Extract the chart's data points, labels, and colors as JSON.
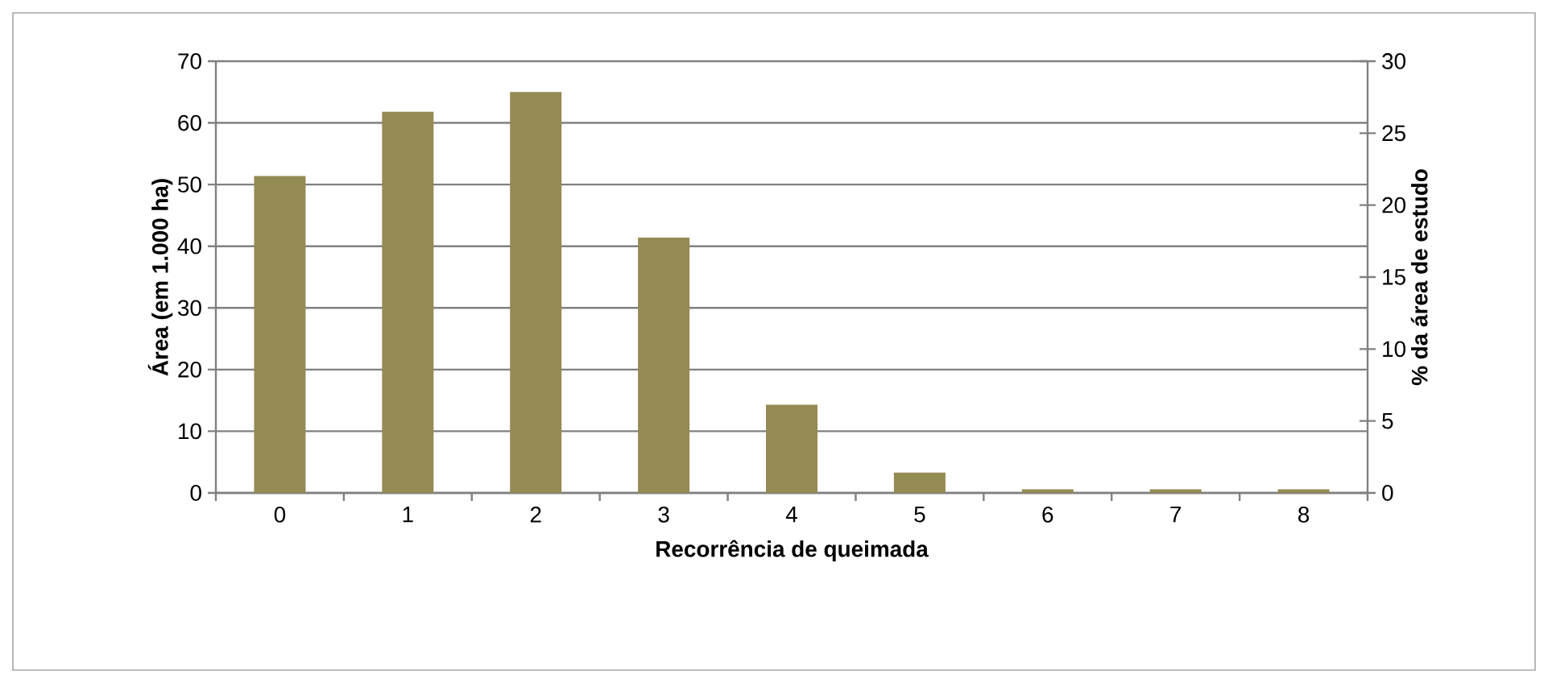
{
  "chart_data": {
    "type": "bar",
    "xlabel": "Recorrência de queimada",
    "ylabel": "Área (em 1.000 ha)",
    "y2label": "% da área de estudo",
    "categories": [
      "0",
      "1",
      "2",
      "3",
      "4",
      "5",
      "6",
      "7",
      "8"
    ],
    "values": [
      51.4,
      61.8,
      65.0,
      41.4,
      14.3,
      3.3,
      0.6,
      0.6,
      0.6
    ],
    "color": "#948a54",
    "ylim": [
      0,
      70
    ],
    "yticks": [
      0,
      10,
      20,
      30,
      40,
      50,
      60,
      70
    ],
    "y2lim": [
      0,
      30
    ],
    "y2ticks": [
      0,
      5,
      10,
      15,
      20,
      25,
      30
    ],
    "grid": "y"
  }
}
